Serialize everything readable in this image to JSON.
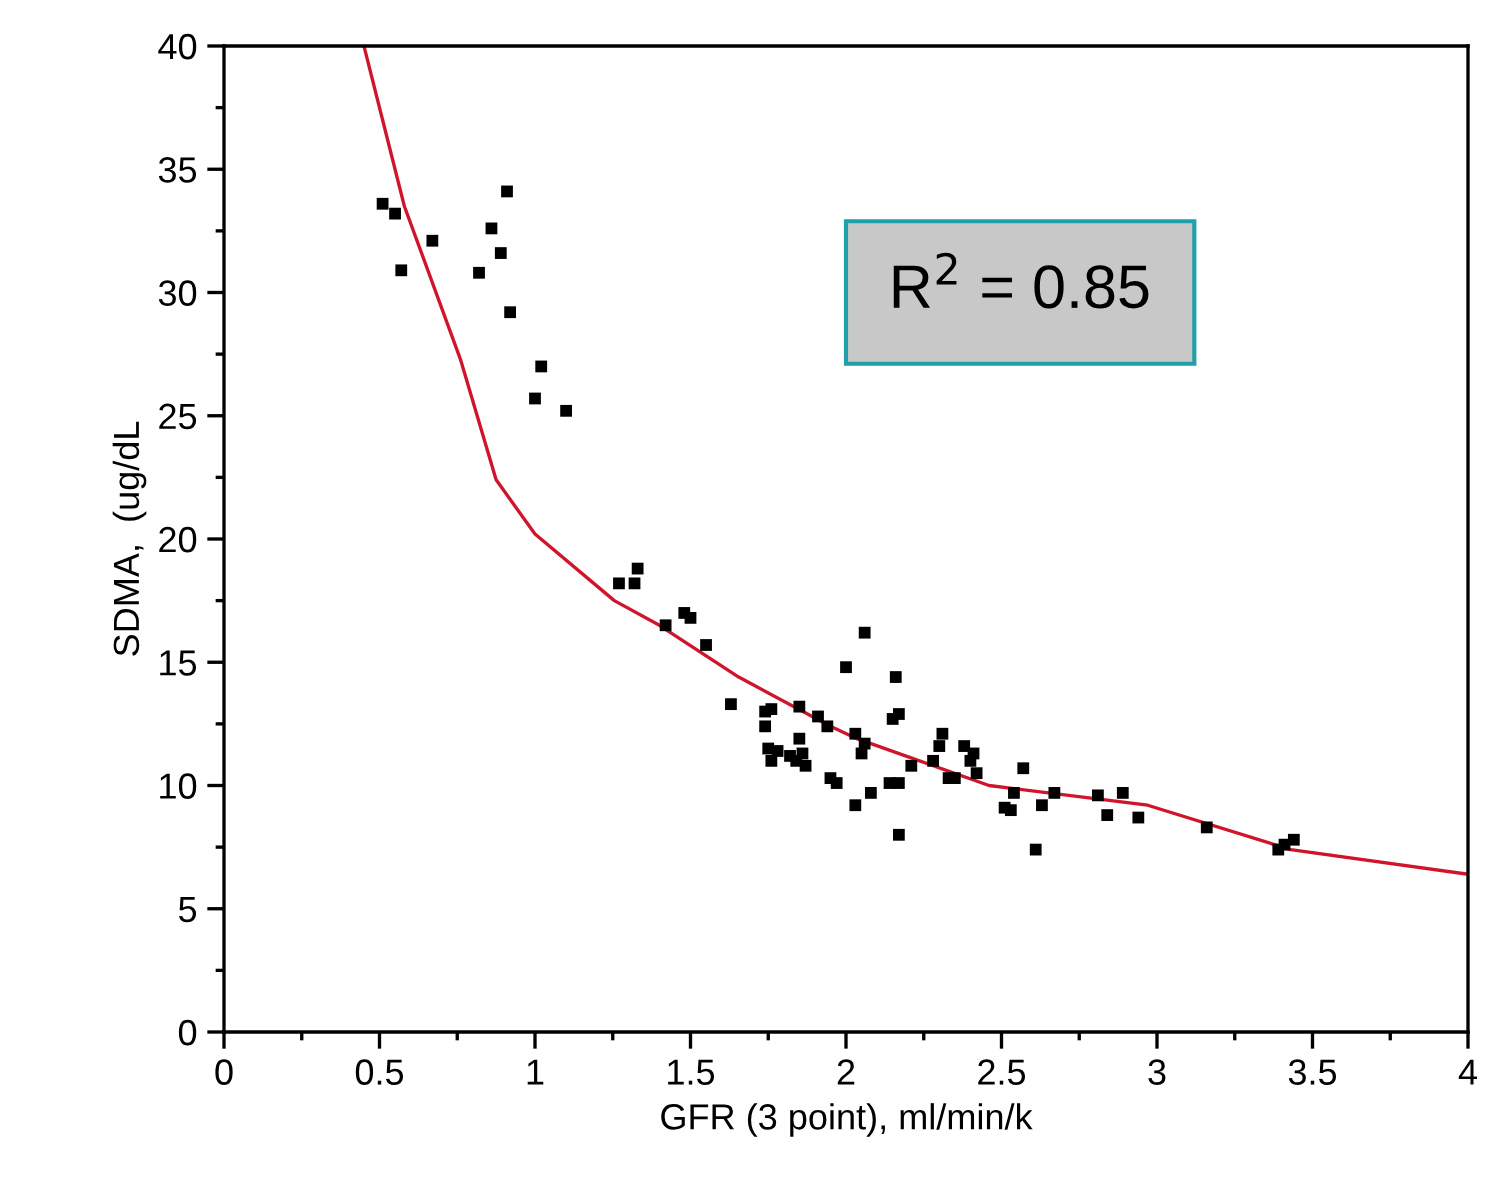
{
  "chart_data": {
    "type": "scatter",
    "xlabel": "GFR (3 point), ml/min/k",
    "ylabel": "SDMA,  (ug/dL",
    "xlim": [
      0,
      4
    ],
    "xticks": [
      0,
      0.5,
      1,
      1.5,
      2,
      2.5,
      3,
      3.5,
      4
    ],
    "ylim": [
      0,
      40
    ],
    "yticks": [
      0,
      5,
      10,
      15,
      20,
      25,
      30,
      35,
      40
    ],
    "grid": false,
    "legend": false,
    "marker": "square",
    "annotations": [
      "R$^{2}$ = 0.85"
    ],
    "series": [
      {
        "color": "#000000",
        "x": [
          0.51,
          0.55,
          0.57,
          0.67,
          0.82,
          0.86,
          0.89,
          0.91,
          0.92,
          1.02,
          1.0,
          1.1,
          1.27,
          1.32,
          1.33,
          1.42,
          1.48,
          1.5,
          1.55,
          1.63,
          1.74,
          1.76,
          1.74,
          1.75,
          1.76,
          1.78,
          1.82,
          1.85,
          1.85,
          1.84,
          1.86,
          1.87,
          1.91,
          1.94,
          1.95,
          1.97,
          2.0,
          2.03,
          2.03,
          2.05,
          2.06,
          2.06,
          2.08,
          2.14,
          2.15,
          2.16,
          2.17,
          2.17,
          2.17,
          2.21,
          2.28,
          2.3,
          2.31,
          2.33,
          2.35,
          2.38,
          2.4,
          2.41,
          2.42,
          2.51,
          2.53,
          2.54,
          2.57,
          2.61,
          2.63,
          2.67,
          2.81,
          2.84,
          2.89,
          2.94,
          3.16,
          3.39,
          3.41,
          3.44
        ],
        "values": [
          33.6,
          33.2,
          30.9,
          32.1,
          30.8,
          32.6,
          31.6,
          34.1,
          29.2,
          27.0,
          25.7,
          25.2,
          18.2,
          18.2,
          18.8,
          16.5,
          17.0,
          16.8,
          15.7,
          13.3,
          13.0,
          13.1,
          12.4,
          11.5,
          11.0,
          11.4,
          11.2,
          13.2,
          11.9,
          11.0,
          11.3,
          10.8,
          12.8,
          12.4,
          10.3,
          10.1,
          14.8,
          12.1,
          9.2,
          11.3,
          11.7,
          16.2,
          9.7,
          10.1,
          12.7,
          14.4,
          12.9,
          10.1,
          8.0,
          10.8,
          11.0,
          11.6,
          12.1,
          10.3,
          10.3,
          11.6,
          11.0,
          11.3,
          10.5,
          9.1,
          9.0,
          9.7,
          10.7,
          7.4,
          9.2,
          9.7,
          9.6,
          8.8,
          9.7,
          8.7,
          8.3,
          7.4,
          7.6,
          7.8
        ]
      },
      {
        "type": "line",
        "color": "#d0142c",
        "marker": "none",
        "line_style": "solid",
        "x": [
          0.45,
          0.58,
          0.76,
          0.875,
          1.0,
          1.255,
          1.4,
          1.655,
          1.95,
          2.035,
          2.46,
          2.97,
          3.43,
          4.0
        ],
        "values": [
          40,
          33.5,
          27.3,
          22.4,
          20.2,
          17.5,
          16.5,
          14.4,
          12.4,
          11.9,
          10.0,
          9.2,
          7.4,
          6.4
        ]
      }
    ]
  }
}
